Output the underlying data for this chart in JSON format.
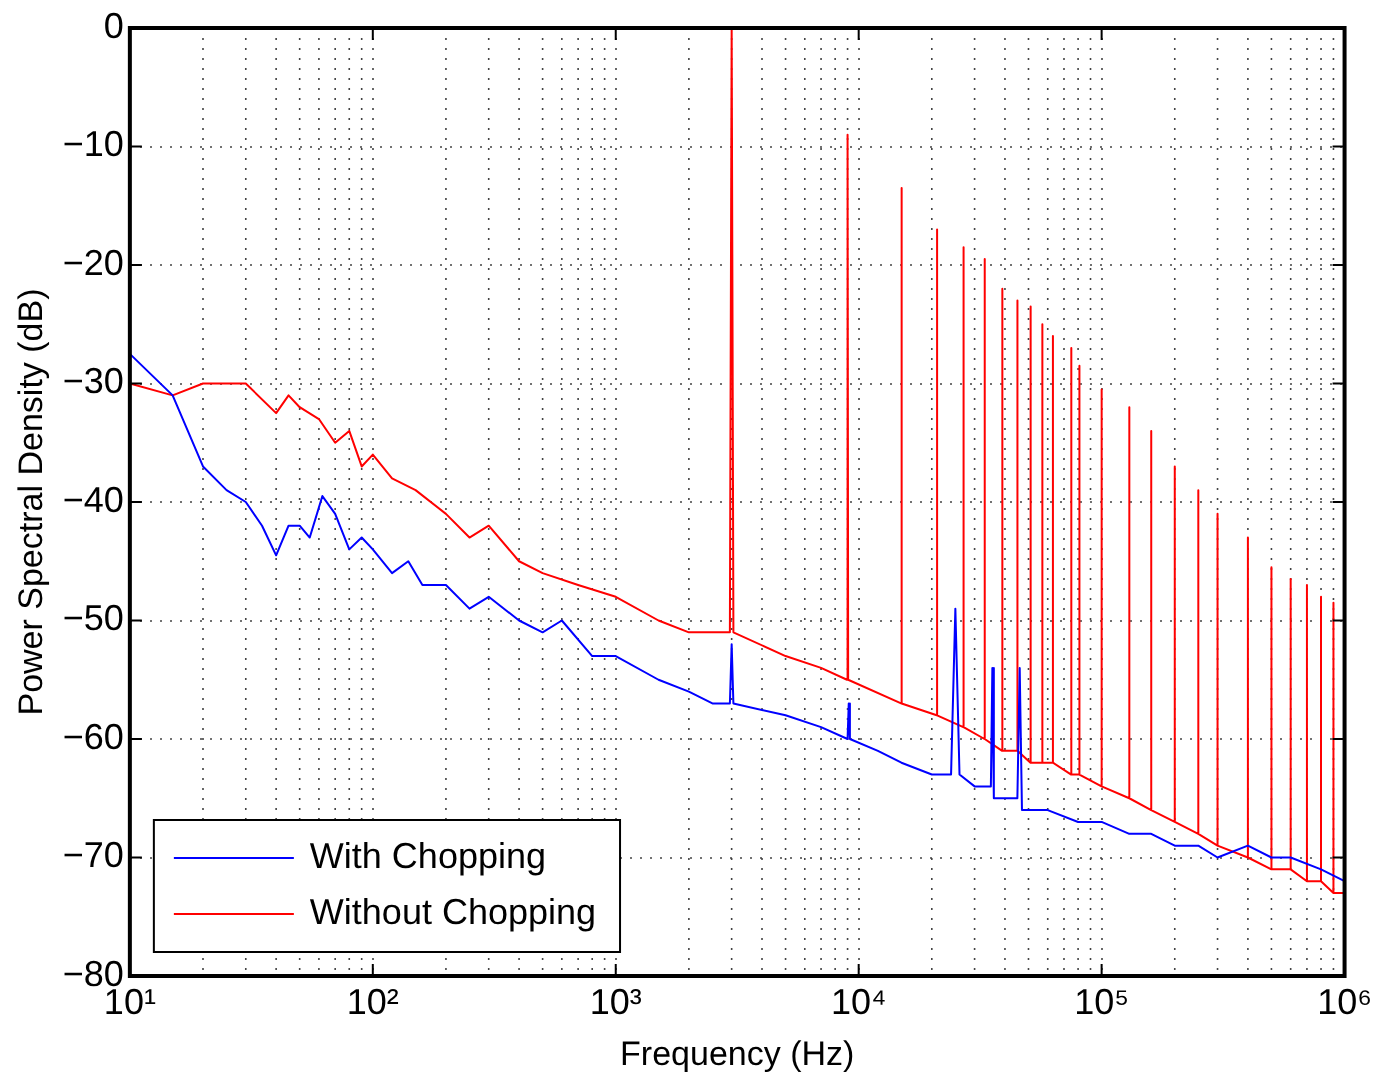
{
  "chart_data": {
    "type": "line",
    "xlabel": "Frequency (Hz)",
    "ylabel": "Power Spectral Density (dB)",
    "log": "x",
    "grid": true,
    "legend": "bottom left",
    "line_style": "solid",
    "marker": "none",
    "xlim": [
      10,
      1000000
    ],
    "xticks": [
      {
        "value": 10,
        "label": "10¹"
      },
      {
        "value": 100,
        "label": "10²"
      },
      {
        "value": 1000,
        "label": "10³"
      },
      {
        "value": 10000,
        "label": "10⁴"
      },
      {
        "value": 100000,
        "label": "10⁵"
      },
      {
        "value": 1000000,
        "label": "10⁶"
      }
    ],
    "ylim": [
      -80,
      0
    ],
    "yticks": [
      -80,
      -70,
      -60,
      -50,
      -40,
      -30,
      -20,
      -10,
      0
    ],
    "series": [
      {
        "name": "With Chopping",
        "color": "#0000ff",
        "x": [
          10,
          15,
          20,
          25,
          30,
          35,
          40,
          45,
          50,
          55,
          62,
          70,
          80,
          90,
          100,
          120,
          140,
          160,
          200,
          250,
          300,
          400,
          500,
          600,
          800,
          1000,
          1500,
          2000,
          2500,
          2950,
          3000,
          3050,
          5000,
          7000,
          9000,
          9100,
          9200,
          12000,
          15000,
          20000,
          24000,
          25000,
          26000,
          30000,
          35000,
          35500,
          36000,
          45000,
          46000,
          47000,
          60000,
          80000,
          100000,
          130000,
          160000,
          200000,
          250000,
          300000,
          400000,
          500000,
          600000,
          800000,
          1000000
        ],
        "values": [
          -27.5,
          -31,
          -37,
          -39,
          -40,
          -42,
          -44.5,
          -42,
          -42,
          -43,
          -39.5,
          -41,
          -44,
          -43,
          -44,
          -46,
          -45,
          -47,
          -47,
          -49,
          -48,
          -50,
          -51,
          -50,
          -53,
          -53,
          -55,
          -56,
          -57,
          -57,
          -52,
          -57,
          -58,
          -59,
          -60,
          -57,
          -60,
          -61,
          -62,
          -63,
          -63,
          -49,
          -63,
          -64,
          -64,
          -54,
          -65,
          -65,
          -54,
          -66,
          -66,
          -67,
          -67,
          -68,
          -68,
          -69,
          -69,
          -70,
          -69,
          -70,
          -70,
          -71,
          -72
        ]
      },
      {
        "name": "Without Chopping",
        "color": "#ff0000",
        "x": [
          10,
          15,
          20,
          30,
          40,
          45,
          50,
          60,
          70,
          80,
          90,
          100,
          120,
          150,
          200,
          250,
          300,
          400,
          500,
          700,
          1000,
          1500,
          2000,
          2950,
          3000,
          3050,
          5000,
          7000,
          8950,
          9000,
          9050,
          14950,
          15000,
          15050,
          20950,
          21000,
          21050,
          26950,
          27000,
          27050,
          32950,
          33000,
          33050,
          38950,
          39000,
          39050,
          44950,
          45000,
          45050,
          50950,
          51000,
          51050,
          56950,
          57000,
          57050,
          62950,
          63000,
          63050,
          74950,
          75000,
          75050,
          80950,
          81000,
          81050,
          99950,
          100000,
          100050,
          129950,
          130000,
          130050,
          159950,
          160000,
          160050,
          199950,
          200000,
          200050,
          249950,
          250000,
          250050,
          299950,
          300000,
          300050,
          399950,
          400000,
          400050,
          499950,
          500000,
          500050,
          599950,
          600000,
          600050,
          699950,
          700000,
          700050,
          799950,
          800000,
          800050,
          899950,
          900000,
          900050,
          1000000
        ],
        "values": [
          -30,
          -31,
          -30,
          -30,
          -32.5,
          -31,
          -32,
          -33,
          -35,
          -34,
          -37,
          -36,
          -38,
          -39,
          -41,
          -43,
          -42,
          -45,
          -46,
          -47,
          -48,
          -50,
          -51,
          -51,
          0,
          -51,
          -53,
          -54,
          -55,
          -9,
          -55,
          -57,
          -13.5,
          -57,
          -58,
          -17,
          -58,
          -59,
          -18.5,
          -59,
          -60,
          -19.5,
          -60,
          -61,
          -22,
          -61,
          -61,
          -23,
          -61,
          -62,
          -23.5,
          -62,
          -62,
          -25,
          -62,
          -62,
          -26,
          -62,
          -63,
          -27,
          -63,
          -63,
          -28.5,
          -63,
          -64,
          -30.5,
          -64,
          -65,
          -32,
          -65,
          -66,
          -34,
          -66,
          -67,
          -37,
          -67,
          -68,
          -39,
          -68,
          -69,
          -41,
          -69,
          -70,
          -43,
          -70,
          -71,
          -45.5,
          -71,
          -71,
          -46.5,
          -71,
          -72,
          -47,
          -72,
          -72,
          -48,
          -72,
          -73,
          -48.5,
          -73,
          -73
        ]
      }
    ]
  }
}
